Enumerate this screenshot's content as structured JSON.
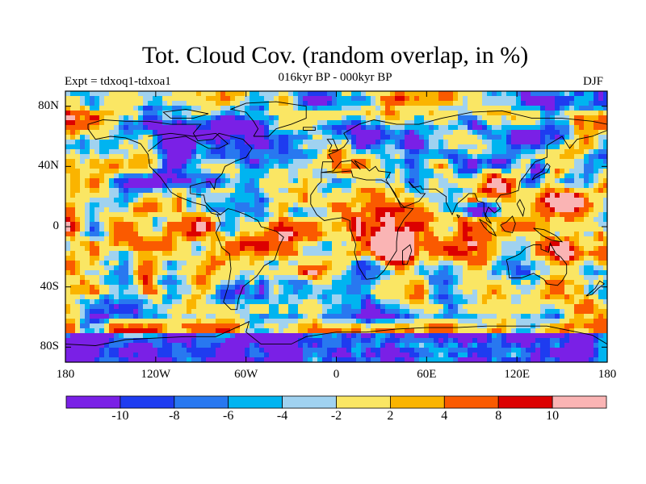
{
  "title": "Tot. Cloud Cov. (random overlap, in %)",
  "experiment": "Expt = tdxoq1-tdxoa1",
  "subtitle": "016kyr BP - 000kyr BP",
  "season": "DJF",
  "lat_ticks": [
    {
      "label": "80N",
      "lat": 80
    },
    {
      "label": "40N",
      "lat": 40
    },
    {
      "label": "0",
      "lat": 0
    },
    {
      "label": "40S",
      "lat": -40
    },
    {
      "label": "80S",
      "lat": -80
    }
  ],
  "lon_ticks": [
    {
      "label": "180",
      "lon": -180
    },
    {
      "label": "120W",
      "lon": -120
    },
    {
      "label": "60W",
      "lon": -60
    },
    {
      "label": "0",
      "lon": 0
    },
    {
      "label": "60E",
      "lon": 60
    },
    {
      "label": "120E",
      "lon": 120
    },
    {
      "label": "180",
      "lon": 180
    }
  ],
  "colorbar": {
    "colors": [
      "#7a20e6",
      "#1e3cf0",
      "#2878f0",
      "#00b4f0",
      "#a0d2f0",
      "#fae664",
      "#fab400",
      "#fa5a00",
      "#dc0000",
      "#fab4b4"
    ],
    "labels": [
      "-10",
      "-8",
      "-6",
      "-4",
      "-2",
      "2",
      "4",
      "8",
      "10"
    ]
  },
  "chart_data": {
    "type": "heatmap",
    "projection": "cylindrical equidistant",
    "lon_range": [
      -180,
      180
    ],
    "lat_range": [
      -90,
      90
    ],
    "variable": "Tot. Cloud Cov. (random overlap, in %)",
    "difference": "016kyr BP - 000kyr BP",
    "season": "DJF",
    "levels": [
      -10,
      -8,
      -6,
      -4,
      -2,
      2,
      4,
      8,
      10
    ],
    "features": [
      {
        "name": "positive anomaly",
        "lon_range": [
          30,
          60
        ],
        "lat_range": [
          -40,
          0
        ],
        "class": ">10"
      },
      {
        "name": "positive anomaly",
        "lon_range": [
          90,
          130
        ],
        "lat_range": [
          10,
          40
        ],
        "class": ">10"
      },
      {
        "name": "negative anomaly",
        "lon_range": [
          80,
          110
        ],
        "lat_range": [
          0,
          20
        ],
        "class": "<-10"
      },
      {
        "name": "negative anomaly",
        "lon_range": [
          -180,
          180
        ],
        "lat_range": [
          -90,
          -70
        ],
        "class": "<-10"
      },
      {
        "name": "negative anomaly",
        "lon_range": [
          -140,
          -40
        ],
        "lat_range": [
          40,
          80
        ],
        "class": "<-10"
      }
    ]
  }
}
